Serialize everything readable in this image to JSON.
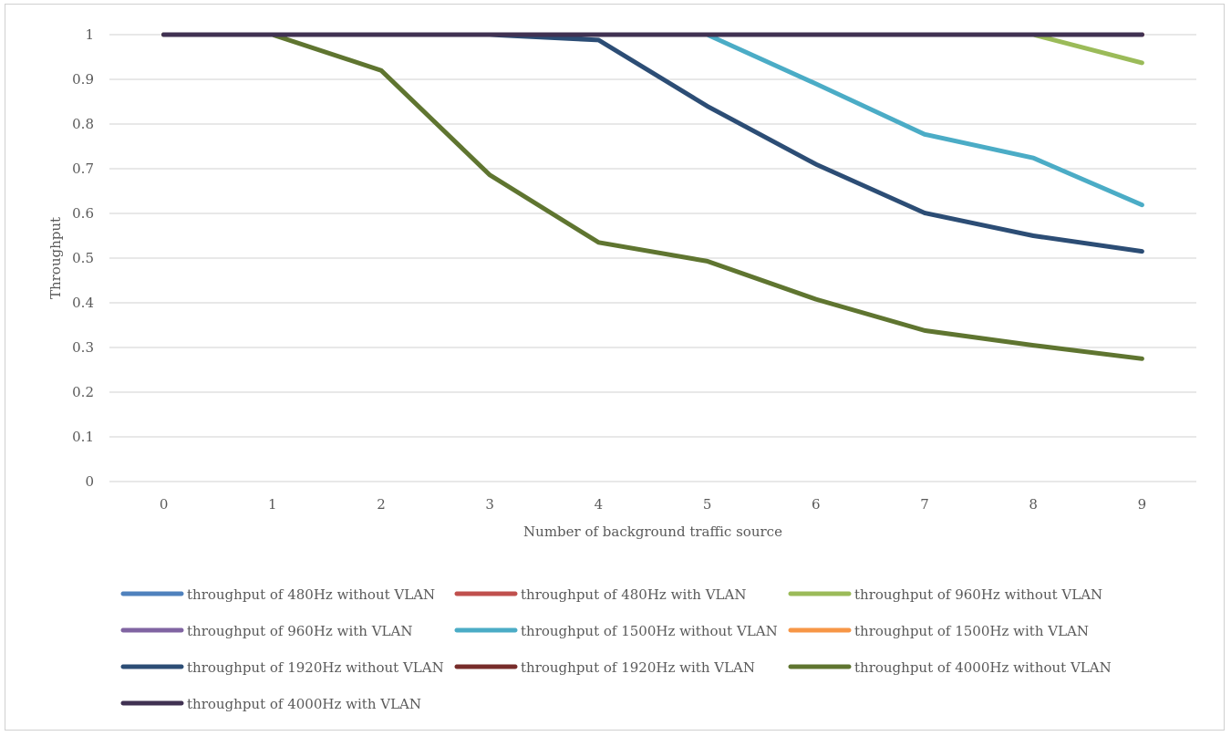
{
  "chart_data": {
    "type": "line",
    "title": "",
    "xlabel": "Number of background traffic source",
    "ylabel": "Throughput",
    "categories": [
      "0",
      "1",
      "2",
      "3",
      "4",
      "5",
      "6",
      "7",
      "8",
      "9"
    ],
    "yticks": [
      "0",
      "0.1",
      "0.2",
      "0.3",
      "0.4",
      "0.5",
      "0.6",
      "0.7",
      "0.8",
      "0.9",
      "1"
    ],
    "ylim": [
      0,
      1
    ],
    "grid": true,
    "legend_position": "bottom",
    "series": [
      {
        "name": "throughput of 480Hz without VLAN",
        "color": "#4f81bd",
        "values": [
          1,
          1,
          1,
          1,
          1,
          1,
          1,
          1,
          1,
          1
        ]
      },
      {
        "name": "throughput of 480Hz with VLAN",
        "color": "#c0504d",
        "values": [
          1,
          1,
          1,
          1,
          1,
          1,
          1,
          1,
          1,
          1
        ]
      },
      {
        "name": "throughput of 960Hz without VLAN",
        "color": "#9bbb59",
        "values": [
          1,
          1,
          1,
          1,
          1,
          1,
          1,
          1,
          1,
          0.937
        ]
      },
      {
        "name": "throughput of 960Hz with VLAN",
        "color": "#8064a2",
        "values": [
          1,
          1,
          1,
          1,
          1,
          1,
          1,
          1,
          1,
          1
        ]
      },
      {
        "name": "throughput of 1500Hz without VLAN",
        "color": "#4bacc6",
        "values": [
          1,
          1,
          1,
          1,
          1,
          1,
          0.89,
          0.777,
          0.724,
          0.619
        ]
      },
      {
        "name": "throughput of 1500Hz with VLAN",
        "color": "#f79646",
        "values": [
          1,
          1,
          1,
          1,
          1,
          1,
          1,
          1,
          1,
          1
        ]
      },
      {
        "name": "throughput of 1920Hz without VLAN",
        "color": "#2c4d75",
        "values": [
          1,
          1,
          1,
          1,
          0.988,
          0.84,
          0.71,
          0.601,
          0.55,
          0.515
        ]
      },
      {
        "name": "throughput of 1920Hz with VLAN",
        "color": "#772c2a",
        "values": [
          1,
          1,
          1,
          1,
          1,
          1,
          1,
          1,
          1,
          1
        ]
      },
      {
        "name": "throughput of 4000Hz without VLAN",
        "color": "#5f7530",
        "values": [
          1,
          1,
          0.92,
          0.686,
          0.535,
          0.493,
          0.408,
          0.338,
          0.305,
          0.275
        ]
      },
      {
        "name": "throughput of 4000Hz with VLAN",
        "color": "#403152",
        "values": [
          1,
          1,
          1,
          1,
          1,
          1,
          1,
          1,
          1,
          1
        ]
      }
    ]
  }
}
